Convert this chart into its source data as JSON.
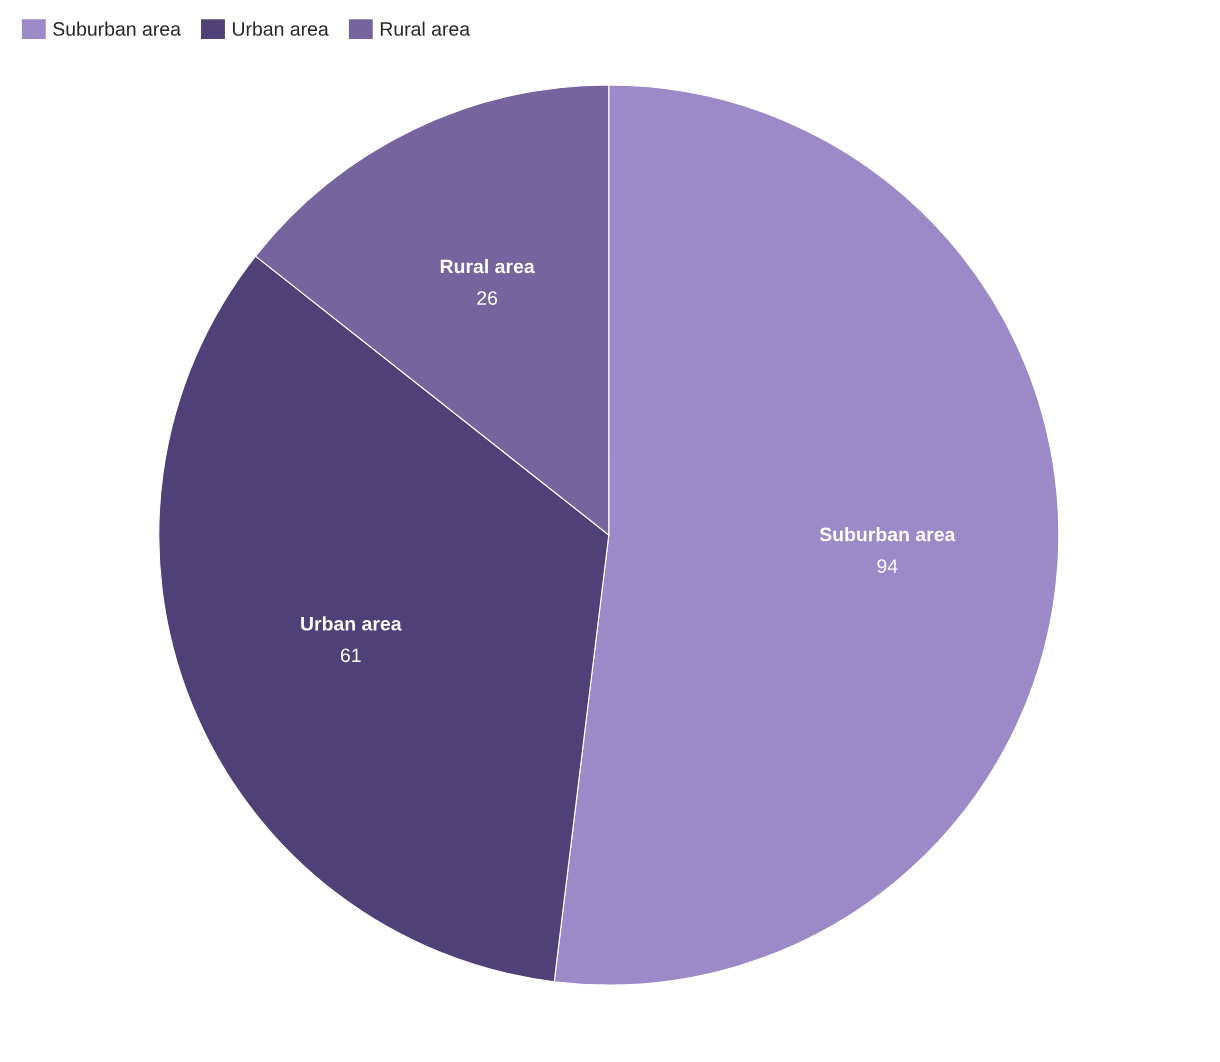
{
  "chart_data": {
    "type": "pie",
    "categories": [
      "Suburban area",
      "Urban area",
      "Rural area"
    ],
    "values": [
      94,
      61,
      26
    ],
    "colors": [
      "#9b89c8",
      "#4f4178",
      "#76649f"
    ],
    "data_labels": true,
    "legend": "top left"
  }
}
